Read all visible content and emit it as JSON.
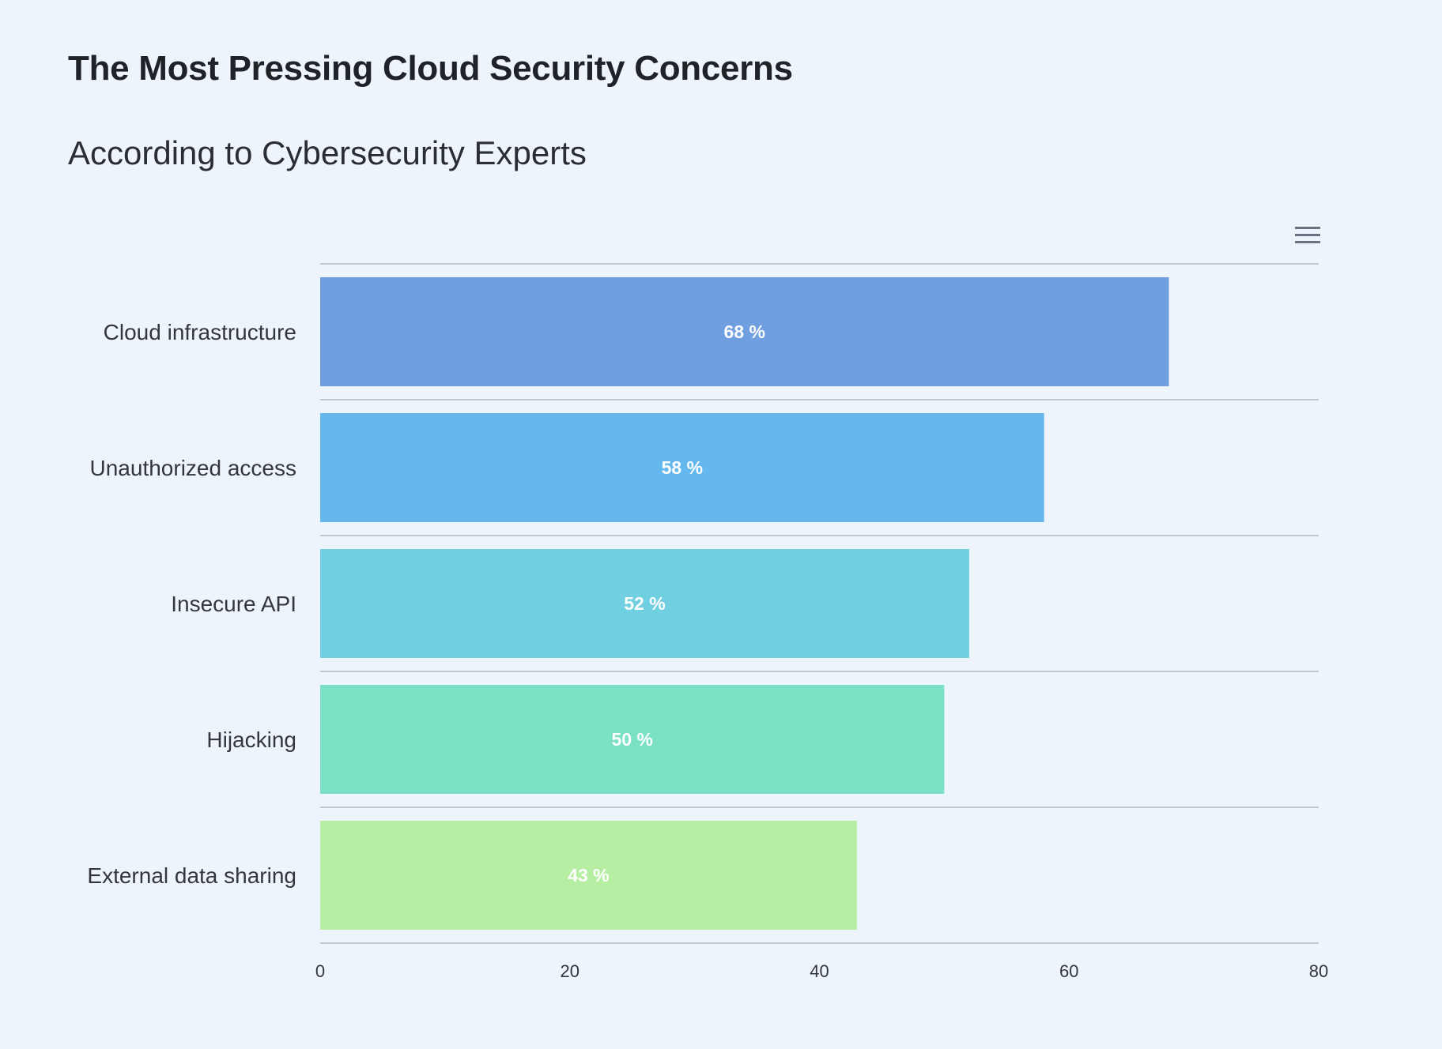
{
  "title": "The Most Pressing Cloud Security Concerns",
  "subtitle": "According to Cybersecurity Experts",
  "menu": {
    "icon": "hamburger-menu-icon"
  },
  "chart_data": {
    "type": "bar",
    "orientation": "horizontal",
    "title": "The Most Pressing Cloud Security Concerns",
    "subtitle": "According to Cybersecurity Experts",
    "categories": [
      "Cloud infrastructure",
      "Unauthorized access",
      "Insecure API",
      "Hijacking",
      "External data sharing"
    ],
    "values": [
      68,
      58,
      52,
      50,
      43
    ],
    "data_labels": [
      "68 %",
      "58 %",
      "52 %",
      "50 %",
      "43 %"
    ],
    "colors": [
      "#6f9fe0",
      "#64b8ee",
      "#70cfe1",
      "#7be1c4",
      "#b6efa4"
    ],
    "xlim": [
      0,
      80
    ],
    "x_ticks": [
      "0",
      "20",
      "40",
      "60",
      "80"
    ],
    "xlabel": "",
    "ylabel": "",
    "grid": "horizontal separator lines between categories",
    "legend": "none"
  }
}
